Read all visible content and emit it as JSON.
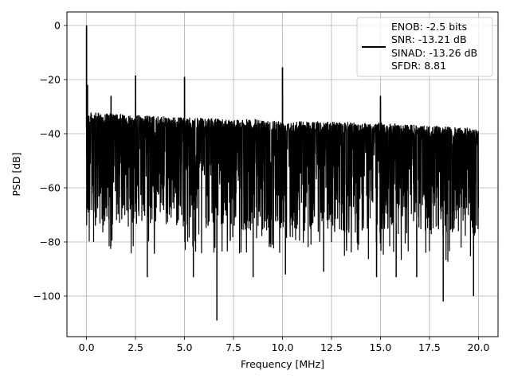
{
  "chart_data": {
    "type": "line",
    "title": "",
    "xlabel": "Frequency [MHz]",
    "ylabel": "PSD [dB]",
    "xlim": [
      -1,
      21
    ],
    "ylim": [
      -115,
      5
    ],
    "grid": true,
    "legend_position": "top-right",
    "line_color": "#000000",
    "xticks": [
      0.0,
      2.5,
      5.0,
      7.5,
      10.0,
      12.5,
      15.0,
      17.5,
      20.0
    ],
    "xtick_labels": [
      "0.0",
      "2.5",
      "5.0",
      "7.5",
      "10.0",
      "12.5",
      "15.0",
      "17.5",
      "20.0"
    ],
    "yticks": [
      0,
      -20,
      -40,
      -60,
      -80,
      -100
    ],
    "ytick_labels": [
      "0",
      "−20",
      "−40",
      "−60",
      "−80",
      "−100"
    ],
    "legend_lines": [
      "ENOB: -2.5 bits",
      "SNR: -13.21 dB",
      "SINAD: -13.26 dB",
      "SFDR: 8.81"
    ],
    "noise_floor": {
      "x_range": [
        0,
        20
      ],
      "upper_envelope": [
        [
          0.0,
          -32
        ],
        [
          5.0,
          -34
        ],
        [
          10.0,
          -35
        ],
        [
          15.0,
          -36
        ],
        [
          20.0,
          -38
        ]
      ],
      "typical_band": [
        -72,
        -38
      ],
      "min_dip_envelope": [
        [
          0.0,
          -76
        ],
        [
          10.0,
          -78
        ],
        [
          20.0,
          -80
        ]
      ]
    },
    "spurs": [
      {
        "x": 0.0,
        "y": 0
      },
      {
        "x": 0.05,
        "y": -22
      },
      {
        "x": 1.25,
        "y": -26
      },
      {
        "x": 2.5,
        "y": -18.5
      },
      {
        "x": 5.0,
        "y": -19
      },
      {
        "x": 10.0,
        "y": -15.5
      },
      {
        "x": 15.0,
        "y": -26
      }
    ],
    "deep_dips": [
      {
        "x": 3.1,
        "y": -93
      },
      {
        "x": 5.45,
        "y": -93
      },
      {
        "x": 6.65,
        "y": -109
      },
      {
        "x": 8.5,
        "y": -93
      },
      {
        "x": 10.15,
        "y": -92
      },
      {
        "x": 12.1,
        "y": -91
      },
      {
        "x": 14.8,
        "y": -93
      },
      {
        "x": 15.8,
        "y": -93
      },
      {
        "x": 16.85,
        "y": -93
      },
      {
        "x": 18.2,
        "y": -102
      },
      {
        "x": 19.75,
        "y": -100
      }
    ]
  }
}
